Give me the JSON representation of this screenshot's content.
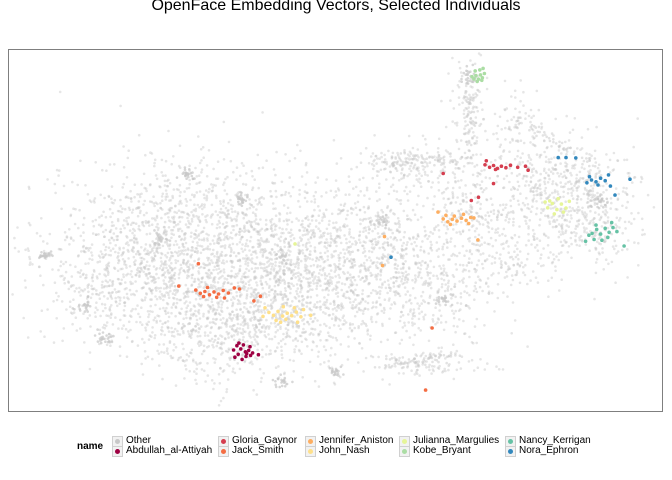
{
  "chart_data": {
    "type": "scatter",
    "title": "OpenFace Embedding Vectors,  Selected Individuals",
    "xlabel": "",
    "ylabel": "",
    "grid": false,
    "axes_visible": false,
    "xlim": [
      0,
      100
    ],
    "ylim": [
      0,
      100
    ],
    "legend": {
      "title": "name",
      "position": "bottom",
      "entries": [
        "Other",
        "Abdullah_al-Attiyah",
        "Gloria_Gaynor",
        "Jack_Smith",
        "Jennifer_Aniston",
        "John_Nash",
        "Julianna_Margulies",
        "Kobe_Bryant",
        "Nancy_Kerrigan",
        "Nora_Ephron"
      ]
    },
    "series": [
      {
        "name": "Other",
        "color": "#c8c8c8",
        "note_points": "several thousand grey points forming the background embedding cloud",
        "values": []
      },
      {
        "name": "Abdullah_al-Attiyah",
        "color": "#9e0142",
        "points": [
          [
            35.1,
            15.7
          ],
          [
            35.5,
            17.2
          ],
          [
            36.2,
            16.4
          ],
          [
            36.9,
            17.8
          ],
          [
            36.3,
            15.1
          ],
          [
            34.4,
            16.9
          ],
          [
            35.9,
            18.3
          ],
          [
            36.7,
            16.8
          ],
          [
            34.6,
            14.9
          ],
          [
            35.7,
            14.3
          ],
          [
            37.3,
            16.1
          ],
          [
            38.2,
            15.6
          ],
          [
            36.4,
            15.9
          ],
          [
            35.2,
            18.8
          ],
          [
            34.9,
            18.1
          ],
          [
            37.0,
            15.4
          ]
        ]
      },
      {
        "name": "Gloria_Gaynor",
        "color": "#d53e4f",
        "points": [
          [
            72.9,
            68.2
          ],
          [
            73.6,
            67.5
          ],
          [
            74.2,
            68.0
          ],
          [
            74.8,
            67.2
          ],
          [
            75.4,
            67.8
          ],
          [
            76.1,
            67.4
          ],
          [
            76.8,
            68.1
          ],
          [
            74.5,
            66.9
          ],
          [
            73.1,
            69.3
          ],
          [
            77.9,
            67.5
          ],
          [
            79.1,
            67.8
          ],
          [
            79.5,
            66.7
          ],
          [
            66.5,
            65.8
          ],
          [
            70.8,
            58.3
          ],
          [
            71.9,
            59.2
          ],
          [
            74.2,
            63.0
          ]
        ]
      },
      {
        "name": "Jack_Smith",
        "color": "#f46d43",
        "points": [
          [
            28.6,
            33.5
          ],
          [
            29.3,
            32.6
          ],
          [
            30.0,
            33.1
          ],
          [
            30.7,
            32.2
          ],
          [
            31.4,
            33.0
          ],
          [
            32.1,
            32.4
          ],
          [
            32.8,
            33.4
          ],
          [
            33.6,
            32.7
          ],
          [
            30.4,
            34.2
          ],
          [
            31.8,
            31.5
          ],
          [
            29.8,
            31.7
          ],
          [
            33.0,
            31.3
          ],
          [
            34.5,
            34.1
          ],
          [
            35.3,
            33.8
          ],
          [
            26.0,
            34.6
          ],
          [
            29.0,
            40.8
          ],
          [
            37.5,
            30.5
          ],
          [
            63.8,
            5.8
          ],
          [
            64.8,
            23.0
          ],
          [
            38.5,
            31.8
          ]
        ]
      },
      {
        "name": "Jennifer_Aniston",
        "color": "#fdae61",
        "points": [
          [
            66.5,
            53.2
          ],
          [
            67.2,
            52.4
          ],
          [
            67.9,
            53.1
          ],
          [
            68.6,
            52.6
          ],
          [
            69.3,
            53.4
          ],
          [
            70.0,
            52.8
          ],
          [
            70.7,
            53.6
          ],
          [
            66.9,
            54.2
          ],
          [
            68.2,
            54.0
          ],
          [
            69.6,
            54.5
          ],
          [
            67.6,
            51.7
          ],
          [
            70.4,
            51.9
          ],
          [
            71.2,
            53.5
          ],
          [
            65.7,
            55.1
          ],
          [
            57.5,
            48.3
          ],
          [
            57.2,
            40.3
          ],
          [
            71.8,
            47.4
          ]
        ]
      },
      {
        "name": "John_Nash",
        "color": "#fee08b",
        "points": [
          [
            39.8,
            27.3
          ],
          [
            40.5,
            26.5
          ],
          [
            41.2,
            27.6
          ],
          [
            41.9,
            26.3
          ],
          [
            42.6,
            27.1
          ],
          [
            43.3,
            26.4
          ],
          [
            44.0,
            27.4
          ],
          [
            44.7,
            26.1
          ],
          [
            40.9,
            25.1
          ],
          [
            42.4,
            25.4
          ],
          [
            43.7,
            28.6
          ],
          [
            45.1,
            28.1
          ],
          [
            38.9,
            26.2
          ],
          [
            41.6,
            24.6
          ],
          [
            46.2,
            26.5
          ],
          [
            44.2,
            24.6
          ],
          [
            42.0,
            28.9
          ],
          [
            39.2,
            28.6
          ]
        ]
      },
      {
        "name": "Julianna_Margulies",
        "color": "#e6f598",
        "points": [
          [
            82.5,
            56.3
          ],
          [
            83.2,
            57.5
          ],
          [
            83.9,
            55.8
          ],
          [
            84.6,
            57.3
          ],
          [
            85.3,
            56.2
          ],
          [
            82.8,
            58.2
          ],
          [
            84.1,
            58.8
          ],
          [
            83.5,
            54.6
          ],
          [
            85.8,
            58.1
          ],
          [
            84.9,
            55.1
          ],
          [
            82.1,
            57.9
          ],
          [
            43.8,
            46.3
          ]
        ]
      },
      {
        "name": "Kobe_Bryant",
        "color": "#abdda4",
        "points": [
          [
            71.2,
            92.0
          ],
          [
            71.5,
            92.9
          ],
          [
            71.9,
            91.9
          ],
          [
            72.2,
            93.1
          ],
          [
            72.5,
            92.3
          ],
          [
            71.4,
            94.2
          ],
          [
            72.1,
            94.5
          ],
          [
            72.8,
            93.5
          ],
          [
            71.7,
            91.3
          ],
          [
            72.4,
            91.6
          ],
          [
            70.9,
            92.6
          ],
          [
            72.6,
            94.9
          ]
        ]
      },
      {
        "name": "Nancy_Kerrigan",
        "color": "#66c2a5",
        "points": [
          [
            89.3,
            49.2
          ],
          [
            90.0,
            50.3
          ],
          [
            90.6,
            49.0
          ],
          [
            91.3,
            50.6
          ],
          [
            91.9,
            49.5
          ],
          [
            92.5,
            50.8
          ],
          [
            89.6,
            47.5
          ],
          [
            90.8,
            47.3
          ],
          [
            91.7,
            48.1
          ],
          [
            88.8,
            48.7
          ],
          [
            88.3,
            47.0
          ],
          [
            89.9,
            51.5
          ],
          [
            92.3,
            52.2
          ],
          [
            94.2,
            45.7
          ],
          [
            93.1,
            49.7
          ]
        ]
      },
      {
        "name": "Nora_Ephron",
        "color": "#3288bd",
        "points": [
          [
            88.5,
            63.2
          ],
          [
            89.2,
            64.0
          ],
          [
            89.9,
            63.5
          ],
          [
            90.6,
            64.5
          ],
          [
            91.3,
            63.8
          ],
          [
            88.9,
            64.9
          ],
          [
            91.8,
            65.4
          ],
          [
            90.2,
            62.6
          ],
          [
            92.1,
            62.3
          ],
          [
            95.1,
            64.2
          ],
          [
            92.8,
            59.8
          ],
          [
            84.1,
            70.2
          ],
          [
            85.3,
            70.2
          ],
          [
            86.8,
            70.1
          ],
          [
            58.5,
            42.6
          ]
        ]
      }
    ],
    "background_shape": {
      "clusters_described_by_series_other": true
    }
  }
}
